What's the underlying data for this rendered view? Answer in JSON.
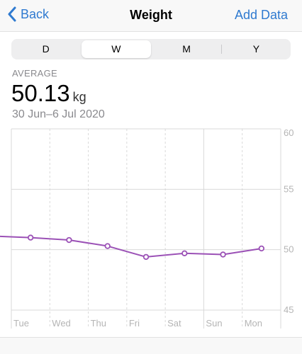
{
  "nav": {
    "back_label": "Back",
    "title": "Weight",
    "add_label": "Add Data"
  },
  "tabs": [
    {
      "label": "D"
    },
    {
      "label": "W"
    },
    {
      "label": "M"
    },
    {
      "label": "Y"
    }
  ],
  "active_tab": "W",
  "summary": {
    "label": "AVERAGE",
    "value": "50.13",
    "unit": "kg",
    "date_range": "30 Jun–6 Jul 2020"
  },
  "colors": {
    "accent": "#2f7ad0",
    "series": "#9b51b6",
    "grid": "#d9d9d9",
    "axis_text": "#b5b5b5"
  },
  "chart_data": {
    "type": "line",
    "categories": [
      "Tue",
      "Wed",
      "Thu",
      "Fri",
      "Sat",
      "Sun",
      "Mon"
    ],
    "series": [
      {
        "values": [
          51.0,
          50.8,
          50.3,
          49.4,
          49.7,
          49.6,
          50.1
        ]
      }
    ],
    "prev_value": 51.1,
    "y_ticks": [
      60,
      55,
      50,
      45
    ],
    "ylim": [
      45,
      60
    ],
    "y_axis_position": "right",
    "grid": true
  }
}
